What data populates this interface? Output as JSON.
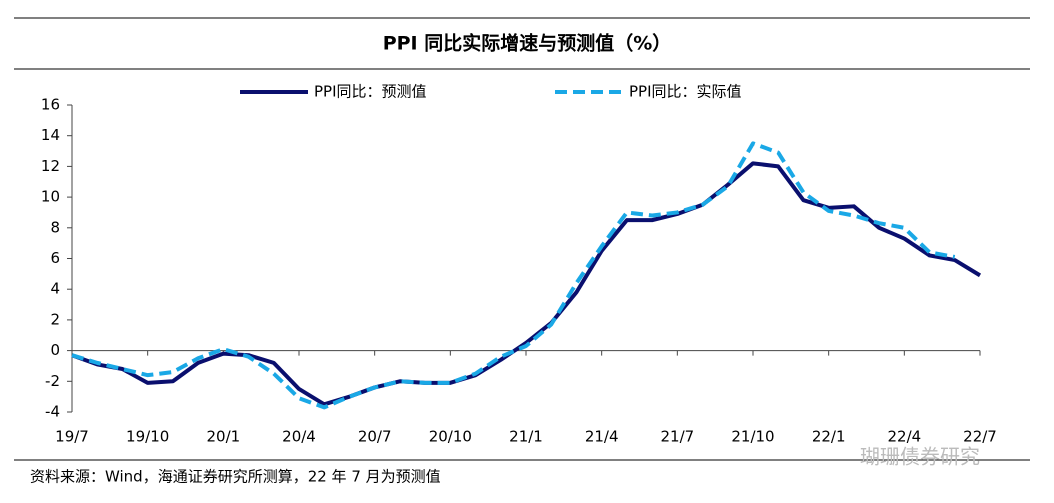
{
  "chart_data": {
    "type": "line",
    "title": "PPI 同比实际增速与预测值（%）",
    "categories": [
      "19/7",
      null,
      null,
      "19/10",
      null,
      null,
      "20/1",
      null,
      null,
      "20/4",
      null,
      null,
      "20/7",
      null,
      null,
      "20/10",
      null,
      null,
      "21/1",
      null,
      null,
      "21/4",
      null,
      null,
      "21/7",
      null,
      null,
      "21/10",
      null,
      null,
      "22/1",
      null,
      null,
      "22/4",
      null,
      null,
      "22/7"
    ],
    "series": [
      {
        "name": "PPI同比：预测值",
        "color": "#0a0f6e",
        "dash": false,
        "values": [
          -0.3,
          -0.9,
          -1.2,
          -2.1,
          -2.0,
          -0.8,
          -0.2,
          -0.3,
          -0.8,
          -2.5,
          -3.5,
          -3.0,
          -2.4,
          -2.0,
          -2.1,
          -2.1,
          -1.6,
          -0.6,
          0.5,
          1.8,
          3.8,
          6.5,
          8.5,
          8.5,
          8.9,
          9.5,
          10.8,
          12.2,
          12.0,
          9.8,
          9.3,
          9.4,
          8.0,
          7.3,
          6.2,
          5.9,
          4.9
        ]
      },
      {
        "name": "PPI同比：实际值",
        "color": "#1aa8e6",
        "dash": true,
        "values": [
          -0.3,
          -0.8,
          -1.2,
          -1.6,
          -1.4,
          -0.5,
          0.1,
          -0.4,
          -1.5,
          -3.1,
          -3.7,
          -3.0,
          -2.4,
          -2.0,
          -2.1,
          -2.1,
          -1.5,
          -0.4,
          0.3,
          1.7,
          4.4,
          6.8,
          9.0,
          8.8,
          9.0,
          9.5,
          10.7,
          13.5,
          12.9,
          10.3,
          9.1,
          8.8,
          8.3,
          8.0,
          6.4,
          6.1,
          null
        ]
      }
    ],
    "ylim": [
      -4,
      16
    ],
    "yticks": [
      -4,
      -2,
      0,
      2,
      4,
      6,
      8,
      10,
      12,
      14,
      16
    ],
    "source": "资料来源：Wind，海通证券研究所测算，22 年 7 月为预测值",
    "watermark": "瑚珊债券研究"
  }
}
